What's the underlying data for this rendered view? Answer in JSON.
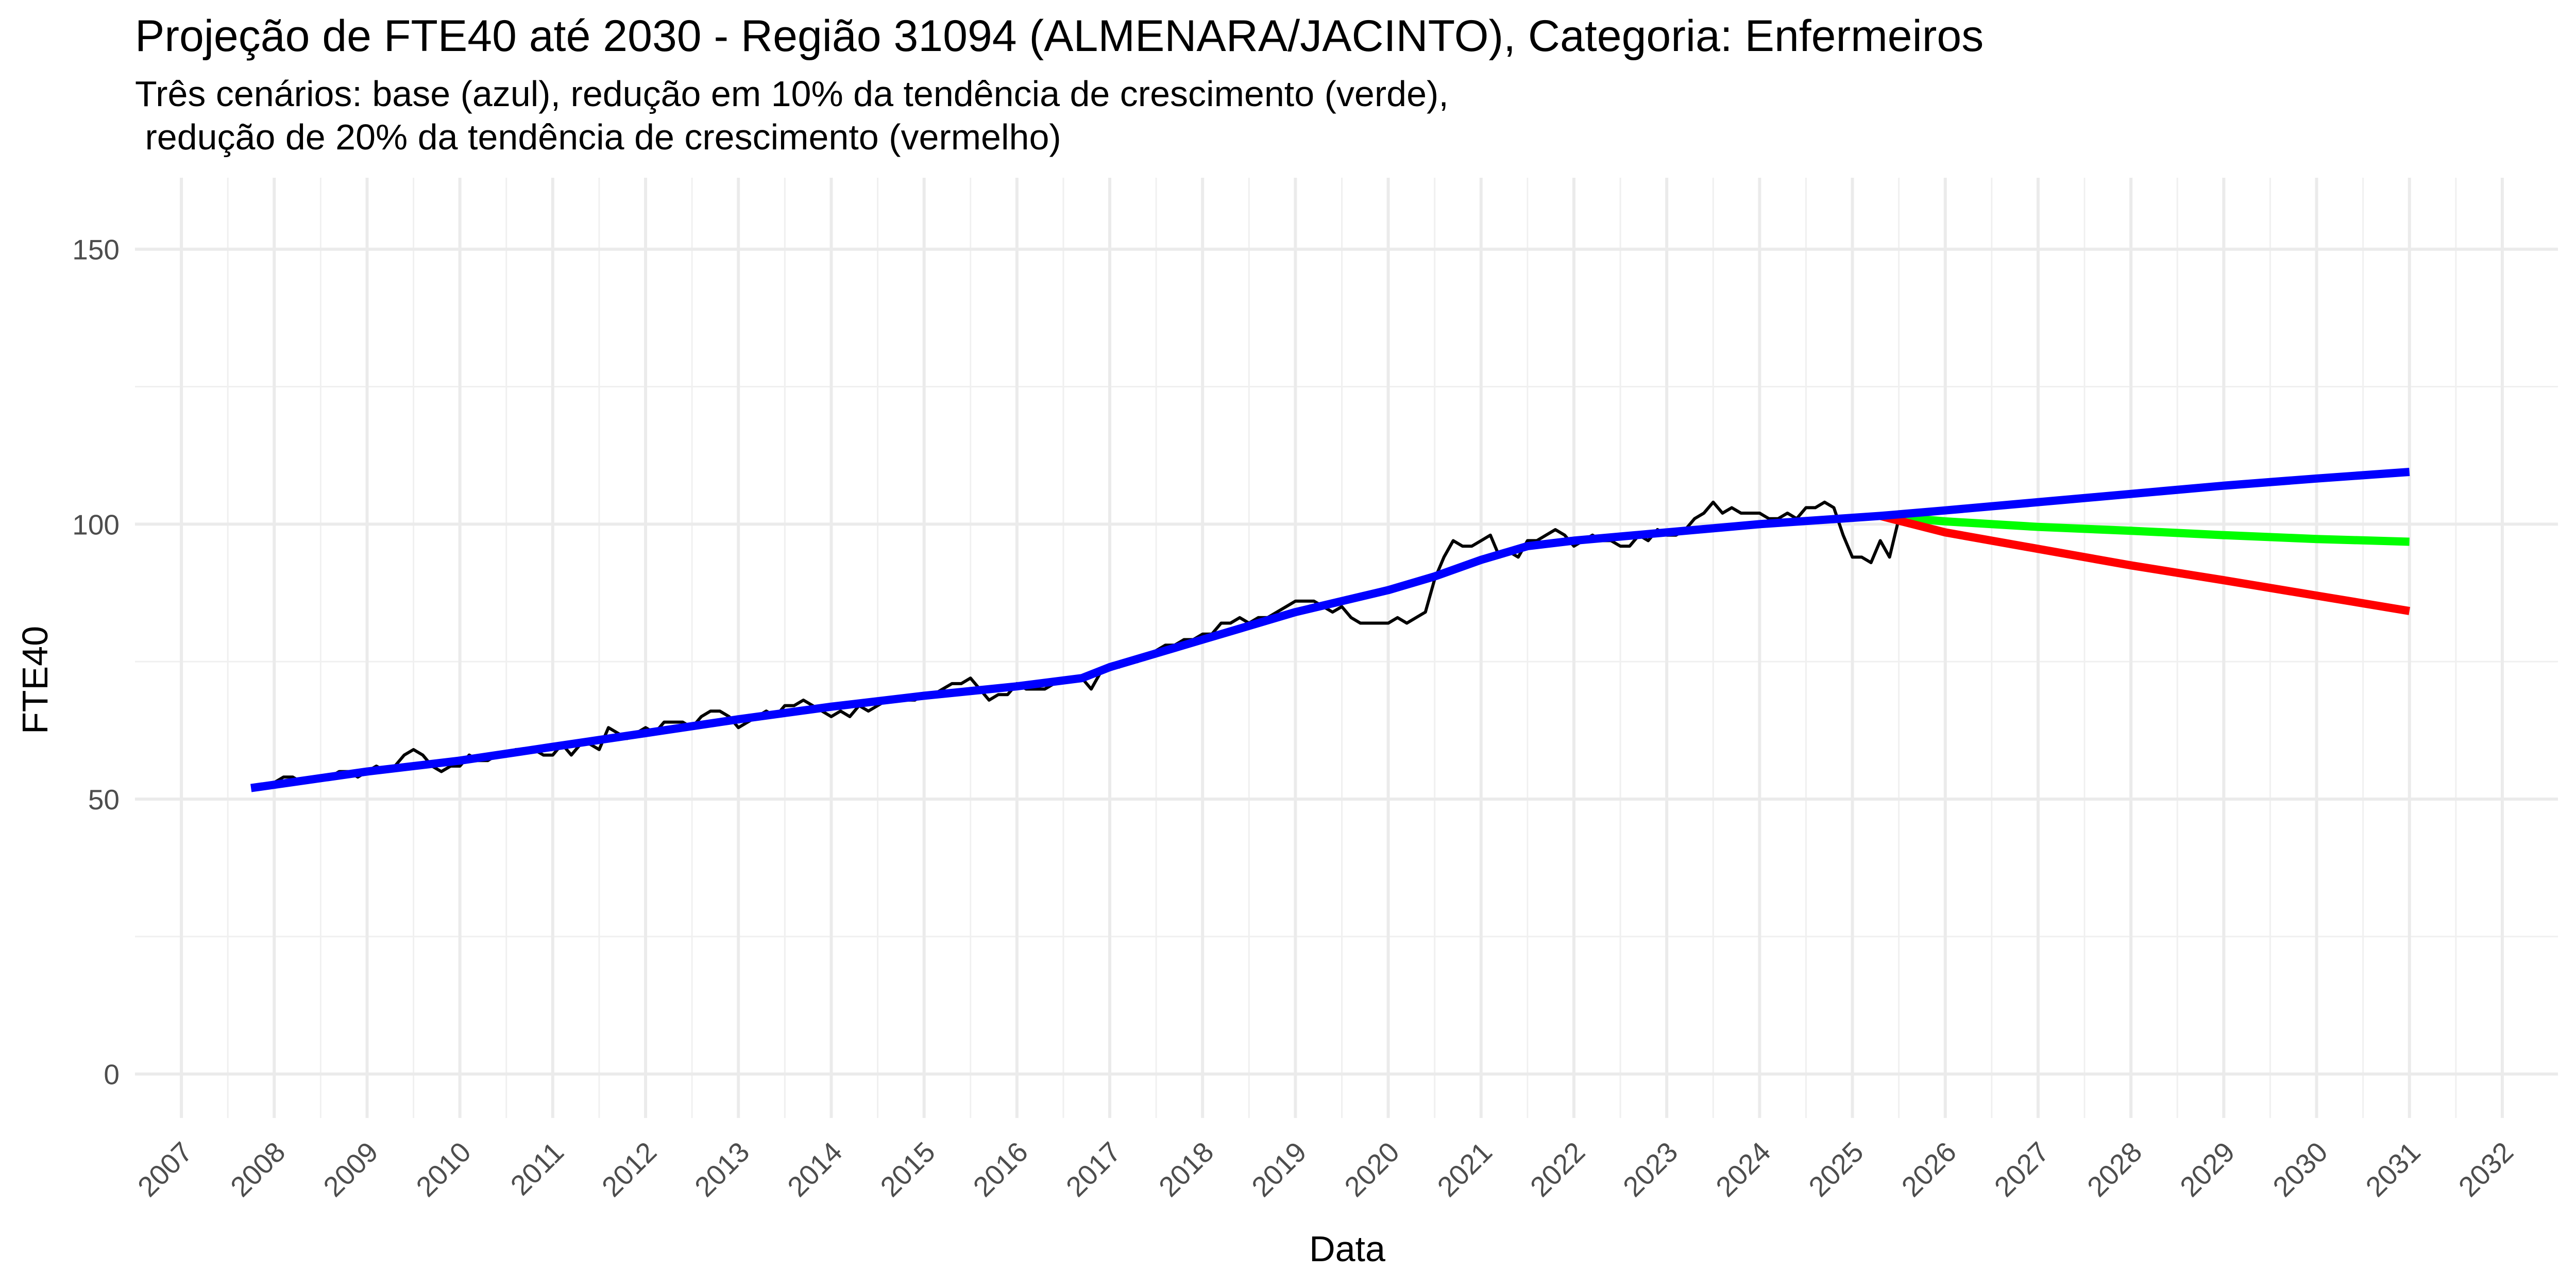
{
  "title": "Projeção de FTE40 até 2030 - Região 31094 (ALMENARA/JACINTO), Categoria: Enfermeiros",
  "subtitle_line1": "Três cenários: base (azul), redução em 10% da tendência de crescimento (verde),",
  "subtitle_line2": " redução de 20% da tendência de crescimento (vermelho)",
  "chart_data": {
    "type": "line",
    "xlabel": "Data",
    "ylabel": "FTE40",
    "xlim": [
      2006.5,
      2032.6
    ],
    "ylim": [
      -8,
      163
    ],
    "x_ticks": [
      2007,
      2008,
      2009,
      2010,
      2011,
      2012,
      2013,
      2014,
      2015,
      2016,
      2017,
      2018,
      2019,
      2020,
      2021,
      2022,
      2023,
      2024,
      2025,
      2026,
      2027,
      2028,
      2029,
      2030,
      2031,
      2032
    ],
    "y_ticks": [
      0,
      50,
      100,
      150
    ],
    "grid": true,
    "colors": {
      "observed": "#000000",
      "base": "#0000FF",
      "reduction_10": "#00FF00",
      "reduction_20": "#FF0000"
    },
    "series": [
      {
        "key": "observed",
        "values": [
          [
            2008.0,
            53
          ],
          [
            2008.1,
            54
          ],
          [
            2008.2,
            54
          ],
          [
            2008.3,
            53
          ],
          [
            2008.4,
            54
          ],
          [
            2008.5,
            54
          ],
          [
            2008.6,
            54
          ],
          [
            2008.7,
            55
          ],
          [
            2008.8,
            55
          ],
          [
            2008.9,
            54
          ],
          [
            2009.0,
            55
          ],
          [
            2009.1,
            56
          ],
          [
            2009.2,
            55
          ],
          [
            2009.3,
            56
          ],
          [
            2009.4,
            58
          ],
          [
            2009.5,
            59
          ],
          [
            2009.6,
            58
          ],
          [
            2009.7,
            56
          ],
          [
            2009.8,
            55
          ],
          [
            2009.9,
            56
          ],
          [
            2010.0,
            56
          ],
          [
            2010.1,
            58
          ],
          [
            2010.2,
            57
          ],
          [
            2010.3,
            57
          ],
          [
            2010.4,
            58
          ],
          [
            2010.5,
            58
          ],
          [
            2010.6,
            59
          ],
          [
            2010.7,
            59
          ],
          [
            2010.8,
            59
          ],
          [
            2010.9,
            58
          ],
          [
            2011.0,
            58
          ],
          [
            2011.1,
            60
          ],
          [
            2011.2,
            58
          ],
          [
            2011.3,
            60
          ],
          [
            2011.4,
            60
          ],
          [
            2011.5,
            59
          ],
          [
            2011.6,
            63
          ],
          [
            2011.7,
            62
          ],
          [
            2011.8,
            61
          ],
          [
            2011.9,
            62
          ],
          [
            2012.0,
            63
          ],
          [
            2012.1,
            62
          ],
          [
            2012.2,
            64
          ],
          [
            2012.3,
            64
          ],
          [
            2012.4,
            64
          ],
          [
            2012.5,
            63
          ],
          [
            2012.6,
            65
          ],
          [
            2012.7,
            66
          ],
          [
            2012.8,
            66
          ],
          [
            2012.9,
            65
          ],
          [
            2013.0,
            63
          ],
          [
            2013.1,
            64
          ],
          [
            2013.2,
            65
          ],
          [
            2013.3,
            66
          ],
          [
            2013.4,
            65
          ],
          [
            2013.5,
            67
          ],
          [
            2013.6,
            67
          ],
          [
            2013.7,
            68
          ],
          [
            2013.8,
            67
          ],
          [
            2013.9,
            66
          ],
          [
            2014.0,
            65
          ],
          [
            2014.1,
            66
          ],
          [
            2014.2,
            65
          ],
          [
            2014.3,
            67
          ],
          [
            2014.4,
            66
          ],
          [
            2014.5,
            67
          ],
          [
            2014.6,
            68
          ],
          [
            2014.7,
            68
          ],
          [
            2014.8,
            68
          ],
          [
            2014.9,
            68
          ],
          [
            2015.0,
            69
          ],
          [
            2015.1,
            69
          ],
          [
            2015.2,
            70
          ],
          [
            2015.3,
            71
          ],
          [
            2015.4,
            71
          ],
          [
            2015.5,
            72
          ],
          [
            2015.6,
            70
          ],
          [
            2015.7,
            68
          ],
          [
            2015.8,
            69
          ],
          [
            2015.9,
            69
          ],
          [
            2016.0,
            71
          ],
          [
            2016.1,
            70
          ],
          [
            2016.2,
            70
          ],
          [
            2016.3,
            70
          ],
          [
            2016.4,
            71
          ],
          [
            2016.5,
            72
          ],
          [
            2016.6,
            72
          ],
          [
            2016.7,
            72
          ],
          [
            2016.8,
            70
          ],
          [
            2016.9,
            73
          ],
          [
            2017.0,
            74
          ],
          [
            2017.1,
            74
          ],
          [
            2017.2,
            75
          ],
          [
            2017.3,
            75
          ],
          [
            2017.4,
            76
          ],
          [
            2017.5,
            77
          ],
          [
            2017.6,
            78
          ],
          [
            2017.7,
            78
          ],
          [
            2017.8,
            79
          ],
          [
            2017.9,
            79
          ],
          [
            2018.0,
            80
          ],
          [
            2018.1,
            80
          ],
          [
            2018.2,
            82
          ],
          [
            2018.3,
            82
          ],
          [
            2018.4,
            83
          ],
          [
            2018.5,
            82
          ],
          [
            2018.6,
            83
          ],
          [
            2018.7,
            83
          ],
          [
            2018.8,
            84
          ],
          [
            2018.9,
            85
          ],
          [
            2019.0,
            86
          ],
          [
            2019.1,
            86
          ],
          [
            2019.2,
            86
          ],
          [
            2019.3,
            85
          ],
          [
            2019.4,
            84
          ],
          [
            2019.5,
            85
          ],
          [
            2019.6,
            83
          ],
          [
            2019.7,
            82
          ],
          [
            2019.8,
            82
          ],
          [
            2019.9,
            82
          ],
          [
            2020.0,
            82
          ],
          [
            2020.1,
            83
          ],
          [
            2020.2,
            82
          ],
          [
            2020.3,
            83
          ],
          [
            2020.4,
            84
          ],
          [
            2020.5,
            90
          ],
          [
            2020.6,
            94
          ],
          [
            2020.7,
            97
          ],
          [
            2020.8,
            96
          ],
          [
            2020.9,
            96
          ],
          [
            2021.0,
            97
          ],
          [
            2021.1,
            98
          ],
          [
            2021.2,
            94
          ],
          [
            2021.3,
            95
          ],
          [
            2021.4,
            94
          ],
          [
            2021.5,
            97
          ],
          [
            2021.6,
            97
          ],
          [
            2021.7,
            98
          ],
          [
            2021.8,
            99
          ],
          [
            2021.9,
            98
          ],
          [
            2022.0,
            96
          ],
          [
            2022.1,
            97
          ],
          [
            2022.2,
            98
          ],
          [
            2022.3,
            97
          ],
          [
            2022.4,
            97
          ],
          [
            2022.5,
            96
          ],
          [
            2022.6,
            96
          ],
          [
            2022.7,
            98
          ],
          [
            2022.8,
            97
          ],
          [
            2022.9,
            99
          ],
          [
            2023.0,
            98
          ],
          [
            2023.1,
            98
          ],
          [
            2023.2,
            99
          ],
          [
            2023.3,
            101
          ],
          [
            2023.4,
            102
          ],
          [
            2023.5,
            104
          ],
          [
            2023.6,
            102
          ],
          [
            2023.7,
            103
          ],
          [
            2023.8,
            102
          ],
          [
            2023.9,
            102
          ],
          [
            2024.0,
            102
          ],
          [
            2024.1,
            101
          ],
          [
            2024.2,
            101
          ],
          [
            2024.3,
            102
          ],
          [
            2024.4,
            101
          ],
          [
            2024.5,
            103
          ],
          [
            2024.6,
            103
          ],
          [
            2024.7,
            104
          ],
          [
            2024.8,
            103
          ],
          [
            2024.9,
            98
          ],
          [
            2025.0,
            94
          ],
          [
            2025.1,
            94
          ],
          [
            2025.2,
            93
          ],
          [
            2025.3,
            97
          ],
          [
            2025.4,
            94
          ],
          [
            2025.5,
            101
          ]
        ]
      },
      {
        "key": "base",
        "values": [
          [
            2007.75,
            52
          ],
          [
            2009.0,
            55
          ],
          [
            2010.0,
            57
          ],
          [
            2011.0,
            59.5
          ],
          [
            2012.0,
            62
          ],
          [
            2013.0,
            64.5
          ],
          [
            2014.0,
            66.8
          ],
          [
            2015.0,
            68.8
          ],
          [
            2016.0,
            70.5
          ],
          [
            2016.7,
            72
          ],
          [
            2017.0,
            74
          ],
          [
            2018.0,
            79
          ],
          [
            2019.0,
            84
          ],
          [
            2020.0,
            88
          ],
          [
            2020.5,
            90.5
          ],
          [
            2021.0,
            93.5
          ],
          [
            2021.5,
            96
          ],
          [
            2022.0,
            97
          ],
          [
            2023.0,
            98.5
          ],
          [
            2024.0,
            100
          ],
          [
            2025.3,
            101.5
          ],
          [
            2026.0,
            102.5
          ],
          [
            2027.0,
            104
          ],
          [
            2028.0,
            105.5
          ],
          [
            2029.0,
            107
          ],
          [
            2030.0,
            108.3
          ],
          [
            2031.0,
            109.5
          ]
        ]
      },
      {
        "key": "reduction_10",
        "values": [
          [
            2025.3,
            101.5
          ],
          [
            2026.0,
            100.5
          ],
          [
            2027.0,
            99.5
          ],
          [
            2028.0,
            98.8
          ],
          [
            2029.0,
            98.0
          ],
          [
            2030.0,
            97.3
          ],
          [
            2031.0,
            96.8
          ]
        ]
      },
      {
        "key": "reduction_20",
        "values": [
          [
            2025.3,
            101.5
          ],
          [
            2026.0,
            98.5
          ],
          [
            2027.0,
            95.5
          ],
          [
            2028.0,
            92.5
          ],
          [
            2029.0,
            89.8
          ],
          [
            2030.0,
            87.0
          ],
          [
            2031.0,
            84.2
          ]
        ]
      }
    ]
  }
}
